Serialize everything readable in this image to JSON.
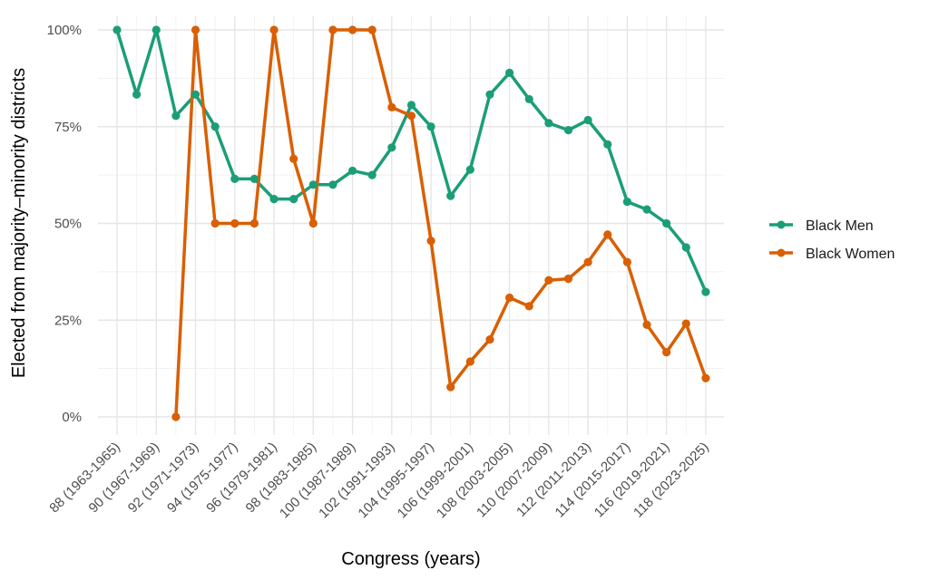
{
  "chart_data": {
    "type": "line",
    "title": "",
    "xlabel": "Congress (years)",
    "ylabel": "Elected from majority–minority districts",
    "x": [
      "88 (1963-1965)",
      "89",
      "90 (1967-1969)",
      "91",
      "92 (1971-1973)",
      "93",
      "94 (1975-1977)",
      "95",
      "96 (1979-1981)",
      "97",
      "98 (1983-1985)",
      "99",
      "100 (1987-1989)",
      "101",
      "102 (1991-1993)",
      "103",
      "104 (1995-1997)",
      "105",
      "106 (1999-2001)",
      "107",
      "108 (2003-2005)",
      "109",
      "110 (2007-2009)",
      "111",
      "112 (2011-2013)",
      "113",
      "114 (2015-2017)",
      "115",
      "116 (2019-2021)",
      "117",
      "118 (2023-2025)"
    ],
    "x_tick_labels": [
      "88 (1963-1965)",
      "90 (1967-1969)",
      "92 (1971-1973)",
      "94 (1975-1977)",
      "96 (1979-1981)",
      "98 (1983-1985)",
      "100 (1987-1989)",
      "102 (1991-1993)",
      "104 (1995-1997)",
      "106 (1999-2001)",
      "108 (2003-2005)",
      "110 (2007-2009)",
      "112 (2011-2013)",
      "114 (2015-2017)",
      "116 (2019-2021)",
      "118 (2023-2025)"
    ],
    "y_ticks": [
      "0%",
      "25%",
      "50%",
      "75%",
      "100%"
    ],
    "ylim": [
      0,
      100
    ],
    "grid": true,
    "legend_position": "right",
    "series": [
      {
        "name": "Black Men",
        "color": "#1b9e77",
        "values": [
          100,
          83.3,
          100,
          77.8,
          83.3,
          75,
          61.5,
          61.5,
          56.3,
          56.3,
          60,
          60,
          63.6,
          62.5,
          69.6,
          80.6,
          75,
          57.1,
          63.9,
          83.3,
          88.9,
          82.1,
          75.9,
          74.1,
          76.7,
          70.4,
          55.6,
          53.6,
          50,
          43.8,
          32.3
        ]
      },
      {
        "name": "Black Women",
        "color": "#d95f02",
        "values": [
          null,
          null,
          null,
          0,
          100,
          50,
          50,
          50,
          100,
          66.7,
          50,
          100,
          100,
          100,
          80,
          77.8,
          45.5,
          7.7,
          14.3,
          20,
          30.8,
          28.6,
          35.3,
          35.7,
          40,
          47.1,
          40,
          23.8,
          16.7,
          24.1,
          10
        ]
      }
    ]
  }
}
